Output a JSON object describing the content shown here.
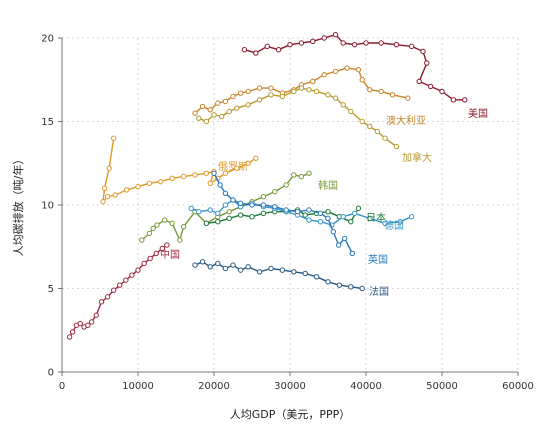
{
  "chart_data": {
    "type": "line",
    "title": "",
    "xlabel": "人均GDP（美元，PPP）",
    "ylabel": "人均碳排放（吨/年）",
    "xlim": [
      0,
      60000
    ],
    "ylim": [
      0,
      20
    ],
    "xticks": [
      "0",
      "10000",
      "20000",
      "30000",
      "40000",
      "50000",
      "60000"
    ],
    "yticks": [
      "0",
      "5",
      "10",
      "15",
      "20"
    ],
    "grid": true,
    "legend": "direct-labels",
    "series": [
      {
        "name": "美国",
        "color": "#8b1a2e",
        "x": [
          24000,
          25500,
          27000,
          28500,
          30000,
          31500,
          33000,
          34500,
          36000,
          37000,
          38500,
          40000,
          42000,
          44000,
          46000,
          47500,
          48000,
          47000,
          48500,
          50000,
          51500,
          53000
        ],
        "y": [
          19.3,
          19.1,
          19.5,
          19.3,
          19.6,
          19.7,
          19.8,
          20.0,
          20.2,
          19.7,
          19.6,
          19.7,
          19.7,
          19.6,
          19.5,
          19.2,
          18.5,
          17.4,
          17.1,
          16.8,
          16.3,
          16.3
        ]
      },
      {
        "name": "澳大利亚",
        "color": "#c8842a",
        "x": [
          17500,
          18500,
          19500,
          20500,
          21500,
          22500,
          23500,
          24500,
          26000,
          27500,
          29000,
          30500,
          31500,
          33000,
          34500,
          36000,
          37500,
          39000,
          39500,
          40500,
          42000,
          43500,
          45500
        ],
        "y": [
          15.5,
          15.9,
          15.7,
          16.1,
          16.2,
          16.5,
          16.7,
          16.8,
          17.0,
          17.0,
          16.7,
          16.9,
          17.2,
          17.4,
          17.8,
          18.0,
          18.2,
          18.1,
          17.5,
          16.9,
          16.8,
          16.6,
          16.4
        ]
      },
      {
        "name": "加拿大",
        "color": "#b89a2e",
        "x": [
          18000,
          19000,
          20000,
          21000,
          22000,
          23000,
          24500,
          26000,
          27500,
          29000,
          30500,
          31500,
          32500,
          33500,
          35000,
          36000,
          37000,
          38000,
          39500,
          40500,
          41500,
          42500,
          44000
        ],
        "y": [
          15.2,
          15.0,
          15.4,
          15.3,
          15.6,
          15.8,
          16.0,
          16.3,
          16.6,
          16.5,
          16.8,
          17.0,
          16.9,
          16.8,
          16.6,
          16.4,
          16.0,
          15.6,
          15.0,
          14.7,
          14.4,
          14.0,
          13.5
        ]
      },
      {
        "name": "俄罗斯",
        "color": "#e09a2a",
        "x": [
          6800,
          6200,
          5600,
          5400,
          6000,
          7000,
          8500,
          10000,
          11500,
          13000,
          14500,
          16000,
          17500,
          19000,
          20000,
          19500,
          20500,
          21500,
          23000,
          24500,
          25500
        ],
        "y": [
          14.0,
          12.2,
          11.0,
          10.2,
          10.5,
          10.6,
          10.9,
          11.1,
          11.3,
          11.4,
          11.6,
          11.7,
          11.8,
          11.9,
          12.0,
          11.3,
          11.6,
          11.9,
          12.2,
          12.5,
          12.8
        ]
      },
      {
        "name": "韩国",
        "color": "#7a9a3a",
        "x": [
          10500,
          11500,
          12000,
          12500,
          13500,
          14500,
          15500,
          16000,
          17500,
          19000,
          20500,
          22000,
          23500,
          25000,
          26500,
          28000,
          29500,
          30500,
          31500,
          32500
        ],
        "y": [
          7.9,
          8.3,
          8.6,
          8.8,
          9.1,
          8.9,
          7.9,
          8.7,
          9.6,
          8.9,
          9.3,
          9.6,
          9.9,
          10.2,
          10.5,
          10.8,
          11.2,
          11.8,
          11.7,
          11.9
        ]
      },
      {
        "name": "中国",
        "color": "#9e2a40",
        "x": [
          1000,
          1400,
          1900,
          2400,
          2900,
          3400,
          3900,
          4500,
          5200,
          6000,
          6800,
          7600,
          8400,
          9200,
          10000,
          10800,
          11600,
          12400,
          13200,
          13800
        ],
        "y": [
          2.1,
          2.4,
          2.8,
          2.9,
          2.7,
          2.8,
          3.0,
          3.4,
          4.2,
          4.5,
          4.9,
          5.2,
          5.5,
          5.8,
          6.1,
          6.5,
          6.8,
          7.1,
          7.4,
          7.6
        ]
      },
      {
        "name": "日本",
        "color": "#1e7a3a",
        "x": [
          19000,
          20500,
          22000,
          23500,
          25000,
          26500,
          28000,
          29500,
          31000,
          32000,
          33500,
          35000,
          36500,
          38000,
          39000
        ],
        "y": [
          8.9,
          9.0,
          9.2,
          9.4,
          9.3,
          9.5,
          9.6,
          9.6,
          9.7,
          9.4,
          9.5,
          9.6,
          9.3,
          9.0,
          9.8
        ]
      },
      {
        "name": "德国",
        "color": "#3a96c8",
        "x": [
          17000,
          18000,
          19500,
          20500,
          21500,
          22500,
          23500,
          25000,
          26500,
          28000,
          29500,
          31000,
          32500,
          34000,
          35500,
          37000,
          38500,
          40500,
          42500,
          44500,
          46000
        ],
        "y": [
          9.8,
          9.6,
          9.7,
          9.5,
          10.0,
          10.3,
          9.9,
          10.1,
          9.9,
          9.8,
          9.6,
          9.4,
          9.1,
          9.0,
          8.8,
          9.3,
          9.5,
          9.2,
          8.9,
          9.0,
          9.3
        ]
      },
      {
        "name": "英国",
        "color": "#2a78b8",
        "x": [
          20000,
          20800,
          21500,
          22500,
          23500,
          25000,
          26500,
          28000,
          29500,
          31000,
          32500,
          34000,
          35000,
          35700,
          36400,
          37200,
          38200
        ],
        "y": [
          11.9,
          11.2,
          10.7,
          10.3,
          10.1,
          10.0,
          10.0,
          9.9,
          9.7,
          9.6,
          9.7,
          9.5,
          9.2,
          8.4,
          7.6,
          8.0,
          7.1
        ]
      },
      {
        "name": "法国",
        "color": "#2a5a82",
        "x": [
          17500,
          18500,
          19500,
          20500,
          21500,
          22500,
          23500,
          24500,
          26000,
          27500,
          29000,
          30500,
          32000,
          33500,
          35000,
          36500,
          38000,
          39500
        ],
        "y": [
          6.4,
          6.6,
          6.3,
          6.5,
          6.2,
          6.4,
          6.1,
          6.3,
          6.0,
          6.2,
          6.1,
          6.0,
          5.9,
          5.7,
          5.4,
          5.2,
          5.1,
          5.0
        ]
      }
    ]
  }
}
